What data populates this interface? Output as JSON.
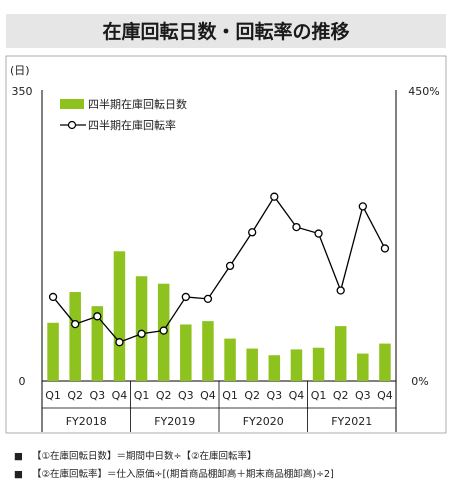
{
  "chart_data": {
    "type": "bar+line",
    "title": "在庫回転日数・回転率の推移",
    "y_left": {
      "unit_label": "(日)",
      "top_label": "350",
      "bottom_label": "0",
      "ylim": [
        0,
        350
      ]
    },
    "y_right": {
      "top_label": "450%",
      "bottom_label": "0%",
      "ylim": [
        0,
        450
      ]
    },
    "quarters": [
      "Q1",
      "Q2",
      "Q3",
      "Q4",
      "Q1",
      "Q2",
      "Q3",
      "Q4",
      "Q1",
      "Q2",
      "Q3",
      "Q4",
      "Q1",
      "Q2",
      "Q3",
      "Q4"
    ],
    "fiscal_years": [
      "FY2018",
      "FY2019",
      "FY2020",
      "FY2021"
    ],
    "series": [
      {
        "name": "四半期在庫回転日数",
        "kind": "bar",
        "color": "#8dc21f",
        "values": [
          70,
          107,
          90,
          156,
          126,
          117,
          68,
          72,
          51,
          39,
          31,
          38,
          40,
          66,
          33,
          45
        ]
      },
      {
        "name": "四半期在庫回転率",
        "kind": "line",
        "color": "#000000",
        "values": [
          130,
          88,
          100,
          60,
          73,
          78,
          130,
          127,
          178,
          230,
          285,
          238,
          228,
          140,
          270,
          205
        ]
      }
    ],
    "notes": [
      "【①在庫回転日数】＝期間中日数÷【②在庫回転率】",
      "【②在庫回転率】＝仕入原価÷[(期首商品棚卸高＋期末商品棚卸高)÷2]"
    ],
    "note_bullet": "■"
  }
}
